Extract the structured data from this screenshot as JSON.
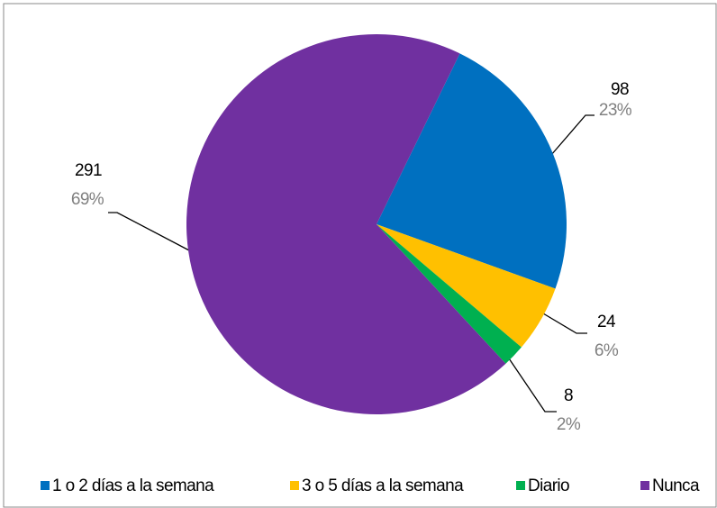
{
  "chart_data": {
    "type": "pie",
    "categories": [
      "1 o 2 días a la semana",
      "3 o 5 días a la semana",
      "Diario",
      "Nunca"
    ],
    "values": [
      98,
      24,
      8,
      291
    ],
    "percent_labels": [
      "23%",
      "6%",
      "2%",
      "69%"
    ],
    "colors": [
      "#0070C0",
      "#FFC000",
      "#00B050",
      "#7030A0"
    ],
    "legend": "bottom"
  }
}
